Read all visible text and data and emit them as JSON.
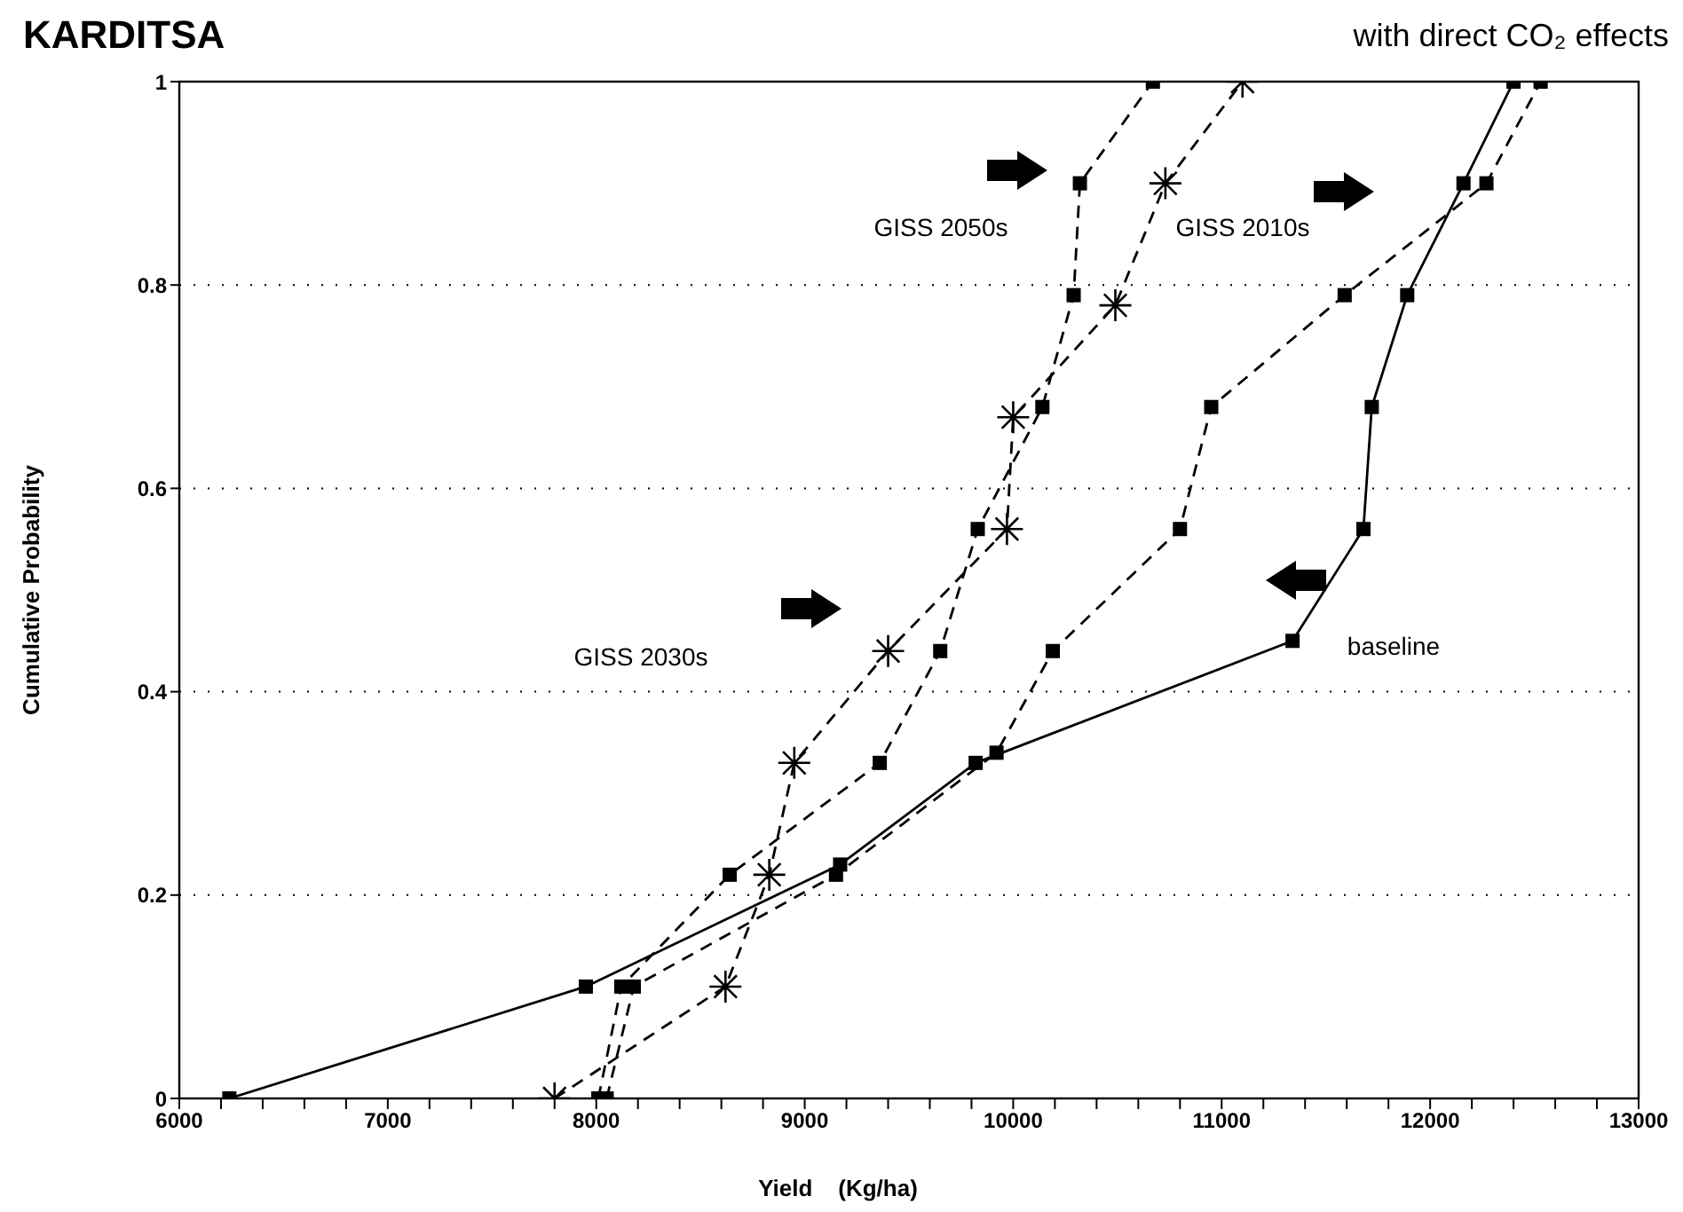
{
  "chart_data": {
    "type": "line",
    "title": "KARDITSA",
    "subtitle": "with direct CO₂ effects",
    "xlabel": "Yield    (Kg/ha)",
    "ylabel": "Cumulative Probability",
    "xlim": [
      6000,
      13000
    ],
    "xticks": [
      6000,
      {
        "value": 6200,
        "label": null
      },
      {
        "value": 6400,
        "label": null
      },
      {
        "value": 6600,
        "label": null
      },
      {
        "value": 6800,
        "label": null
      },
      7000,
      {
        "value": 7200,
        "label": null
      },
      {
        "value": 7400,
        "label": null
      },
      {
        "value": 7600,
        "label": null
      },
      {
        "value": 7800,
        "label": null
      },
      8000,
      {
        "value": 8200,
        "label": null
      },
      {
        "value": 8400,
        "label": null
      },
      {
        "value": 8600,
        "label": null
      },
      {
        "value": 8800,
        "label": null
      },
      9000,
      {
        "value": 9200,
        "label": null
      },
      {
        "value": 9400,
        "label": null
      },
      {
        "value": 9600,
        "label": null
      },
      {
        "value": 9800,
        "label": null
      },
      10000,
      {
        "value": 10200,
        "label": null
      },
      {
        "value": 10400,
        "label": null
      },
      {
        "value": 10600,
        "label": null
      },
      {
        "value": 10800,
        "label": null
      },
      11000,
      {
        "value": 11200,
        "label": null
      },
      {
        "value": 11400,
        "label": null
      },
      {
        "value": 11600,
        "label": null
      },
      {
        "value": 11800,
        "label": null
      },
      12000,
      {
        "value": 12200,
        "label": null
      },
      {
        "value": 12400,
        "label": null
      },
      {
        "value": 12600,
        "label": null
      },
      {
        "value": 12800,
        "label": null
      },
      13000
    ],
    "ylim": [
      0,
      1
    ],
    "yticks": [
      0,
      0.2,
      0.4,
      0.6,
      0.8,
      1
    ],
    "grid": "y",
    "series": [
      {
        "color": "#000000",
        "marker": "square",
        "line_style": "solid",
        "x": [
          6240,
          7950,
          9170,
          9820,
          11340,
          11680,
          11720,
          11890,
          12160,
          12400
        ],
        "values": [
          0,
          0.11,
          0.23,
          0.33,
          0.45,
          0.56,
          0.68,
          0.79,
          0.9,
          1
        ]
      },
      {
        "color": "#000000",
        "marker": "square",
        "line_style": "dashed",
        "x": [
          8050,
          8180,
          9150,
          9920,
          10190,
          10800,
          10950,
          11590,
          12270,
          12530
        ],
        "values": [
          0,
          0.11,
          0.22,
          0.34,
          0.44,
          0.56,
          0.68,
          0.79,
          0.9,
          1
        ]
      },
      {
        "color": "#000000",
        "marker": "cross",
        "line_style": "dashed",
        "x": [
          7800,
          8620,
          8830,
          8950,
          9400,
          9970,
          10000,
          10490,
          10730,
          11100
        ],
        "values": [
          0,
          0.11,
          0.22,
          0.33,
          0.44,
          0.56,
          0.67,
          0.78,
          0.9,
          1
        ]
      },
      {
        "color": "#000000",
        "marker": "square",
        "line_style": "dashed",
        "x": [
          8010,
          8120,
          8640,
          9360,
          9650,
          9830,
          10140,
          10290,
          10320,
          10670
        ],
        "values": [
          0,
          0.11,
          0.22,
          0.33,
          0.44,
          0.56,
          0.68,
          0.79,
          0.9,
          1
        ]
      }
    ],
    "annotations": [
      "GISS 2050s",
      "GISS 2010s",
      "GISS 2030s",
      "baseline"
    ]
  }
}
